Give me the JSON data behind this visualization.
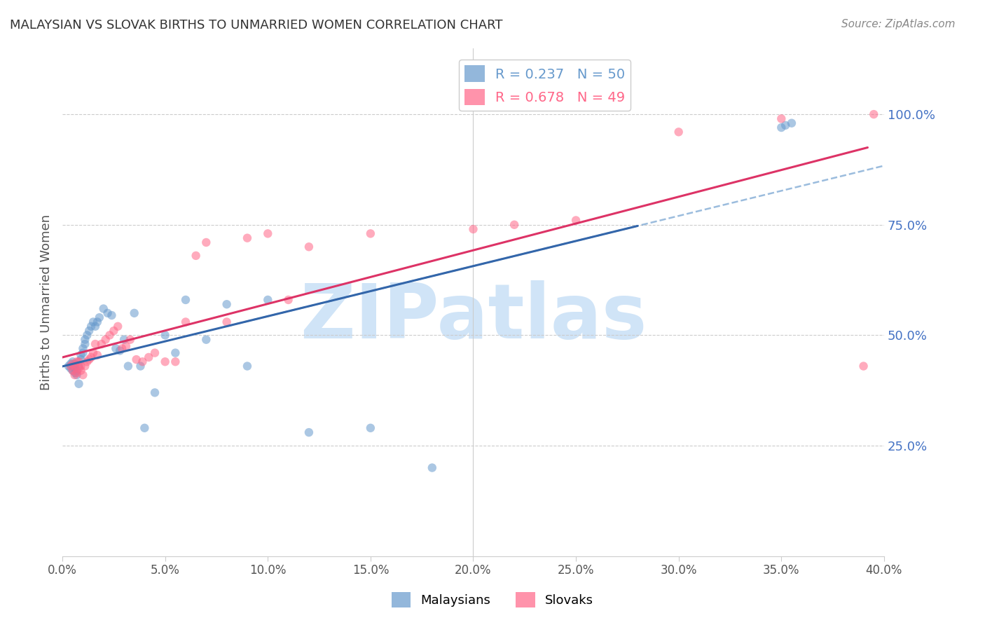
{
  "title": "MALAYSIAN VS SLOVAK BIRTHS TO UNMARRIED WOMEN CORRELATION CHART",
  "source": "Source: ZipAtlas.com",
  "ylabel": "Births to Unmarried Women",
  "xmin": 0.0,
  "xmax": 0.4,
  "ymin": 0.0,
  "ymax": 1.15,
  "right_yticks": [
    0.25,
    0.5,
    0.75,
    1.0
  ],
  "right_yticklabels": [
    "25.0%",
    "50.0%",
    "75.0%",
    "100.0%"
  ],
  "right_ytick_color": "#4472C4",
  "grid_color": "#cccccc",
  "background_color": "#ffffff",
  "watermark_text": "ZIPatlas",
  "watermark_color": "#d0e4f7",
  "legend_R_blue": "R = 0.237",
  "legend_N_blue": "N = 50",
  "legend_R_pink": "R = 0.678",
  "legend_N_pink": "N = 49",
  "legend_label_blue": "Malaysians",
  "legend_label_pink": "Slovaks",
  "blue_color": "#6699CC",
  "pink_color": "#FF6688",
  "blue_scatter_alpha": 0.55,
  "pink_scatter_alpha": 0.55,
  "marker_size": 80,
  "blue_N": 50,
  "pink_N": 49,
  "malaysian_x": [
    0.003,
    0.004,
    0.004,
    0.005,
    0.005,
    0.005,
    0.006,
    0.006,
    0.006,
    0.007,
    0.007,
    0.008,
    0.008,
    0.009,
    0.009,
    0.01,
    0.01,
    0.011,
    0.011,
    0.012,
    0.013,
    0.014,
    0.015,
    0.016,
    0.017,
    0.018,
    0.02,
    0.022,
    0.024,
    0.026,
    0.028,
    0.03,
    0.032,
    0.035,
    0.038,
    0.04,
    0.045,
    0.05,
    0.055,
    0.06,
    0.07,
    0.08,
    0.09,
    0.1,
    0.12,
    0.15,
    0.18,
    0.35,
    0.352,
    0.355
  ],
  "malaysian_y": [
    0.43,
    0.435,
    0.425,
    0.42,
    0.43,
    0.44,
    0.415,
    0.425,
    0.435,
    0.41,
    0.42,
    0.39,
    0.43,
    0.445,
    0.455,
    0.46,
    0.47,
    0.48,
    0.49,
    0.5,
    0.51,
    0.52,
    0.53,
    0.52,
    0.53,
    0.54,
    0.56,
    0.55,
    0.545,
    0.47,
    0.465,
    0.49,
    0.43,
    0.55,
    0.43,
    0.29,
    0.37,
    0.5,
    0.46,
    0.58,
    0.49,
    0.57,
    0.43,
    0.58,
    0.28,
    0.29,
    0.2,
    0.97,
    0.975,
    0.98
  ],
  "slovak_x": [
    0.004,
    0.005,
    0.005,
    0.006,
    0.006,
    0.007,
    0.007,
    0.008,
    0.008,
    0.009,
    0.009,
    0.01,
    0.011,
    0.012,
    0.013,
    0.014,
    0.015,
    0.016,
    0.017,
    0.019,
    0.021,
    0.023,
    0.025,
    0.027,
    0.029,
    0.031,
    0.033,
    0.036,
    0.039,
    0.042,
    0.045,
    0.05,
    0.055,
    0.06,
    0.065,
    0.07,
    0.08,
    0.09,
    0.1,
    0.11,
    0.12,
    0.15,
    0.2,
    0.22,
    0.25,
    0.3,
    0.35,
    0.39,
    0.395
  ],
  "slovak_y": [
    0.43,
    0.42,
    0.435,
    0.41,
    0.43,
    0.415,
    0.44,
    0.425,
    0.44,
    0.43,
    0.42,
    0.41,
    0.43,
    0.44,
    0.445,
    0.45,
    0.46,
    0.48,
    0.455,
    0.48,
    0.49,
    0.5,
    0.51,
    0.52,
    0.47,
    0.475,
    0.49,
    0.445,
    0.44,
    0.45,
    0.46,
    0.44,
    0.44,
    0.53,
    0.68,
    0.71,
    0.53,
    0.72,
    0.73,
    0.58,
    0.7,
    0.73,
    0.74,
    0.75,
    0.76,
    0.96,
    0.99,
    0.43,
    1.0
  ]
}
